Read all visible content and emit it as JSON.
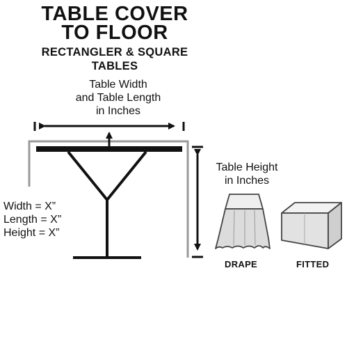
{
  "title": {
    "line1": "TABLE COVER",
    "line2": "TO FLOOR"
  },
  "subtitle": {
    "line1": "RECTANGLER & SQUARE",
    "line2": "TABLES"
  },
  "width_label": [
    "Table Width",
    "and Table Length",
    "in Inches"
  ],
  "height_label": [
    "Table Height",
    "in Inches"
  ],
  "dimensions": [
    "Width = X”",
    "Length = X”",
    "Height = X”"
  ],
  "styles": {
    "drape": "DRAPE",
    "fitted": "FITTED"
  },
  "colors": {
    "ink": "#111111",
    "cloth_outline": "#9a9a9a",
    "cloth_fill": "#e6e6e6"
  }
}
